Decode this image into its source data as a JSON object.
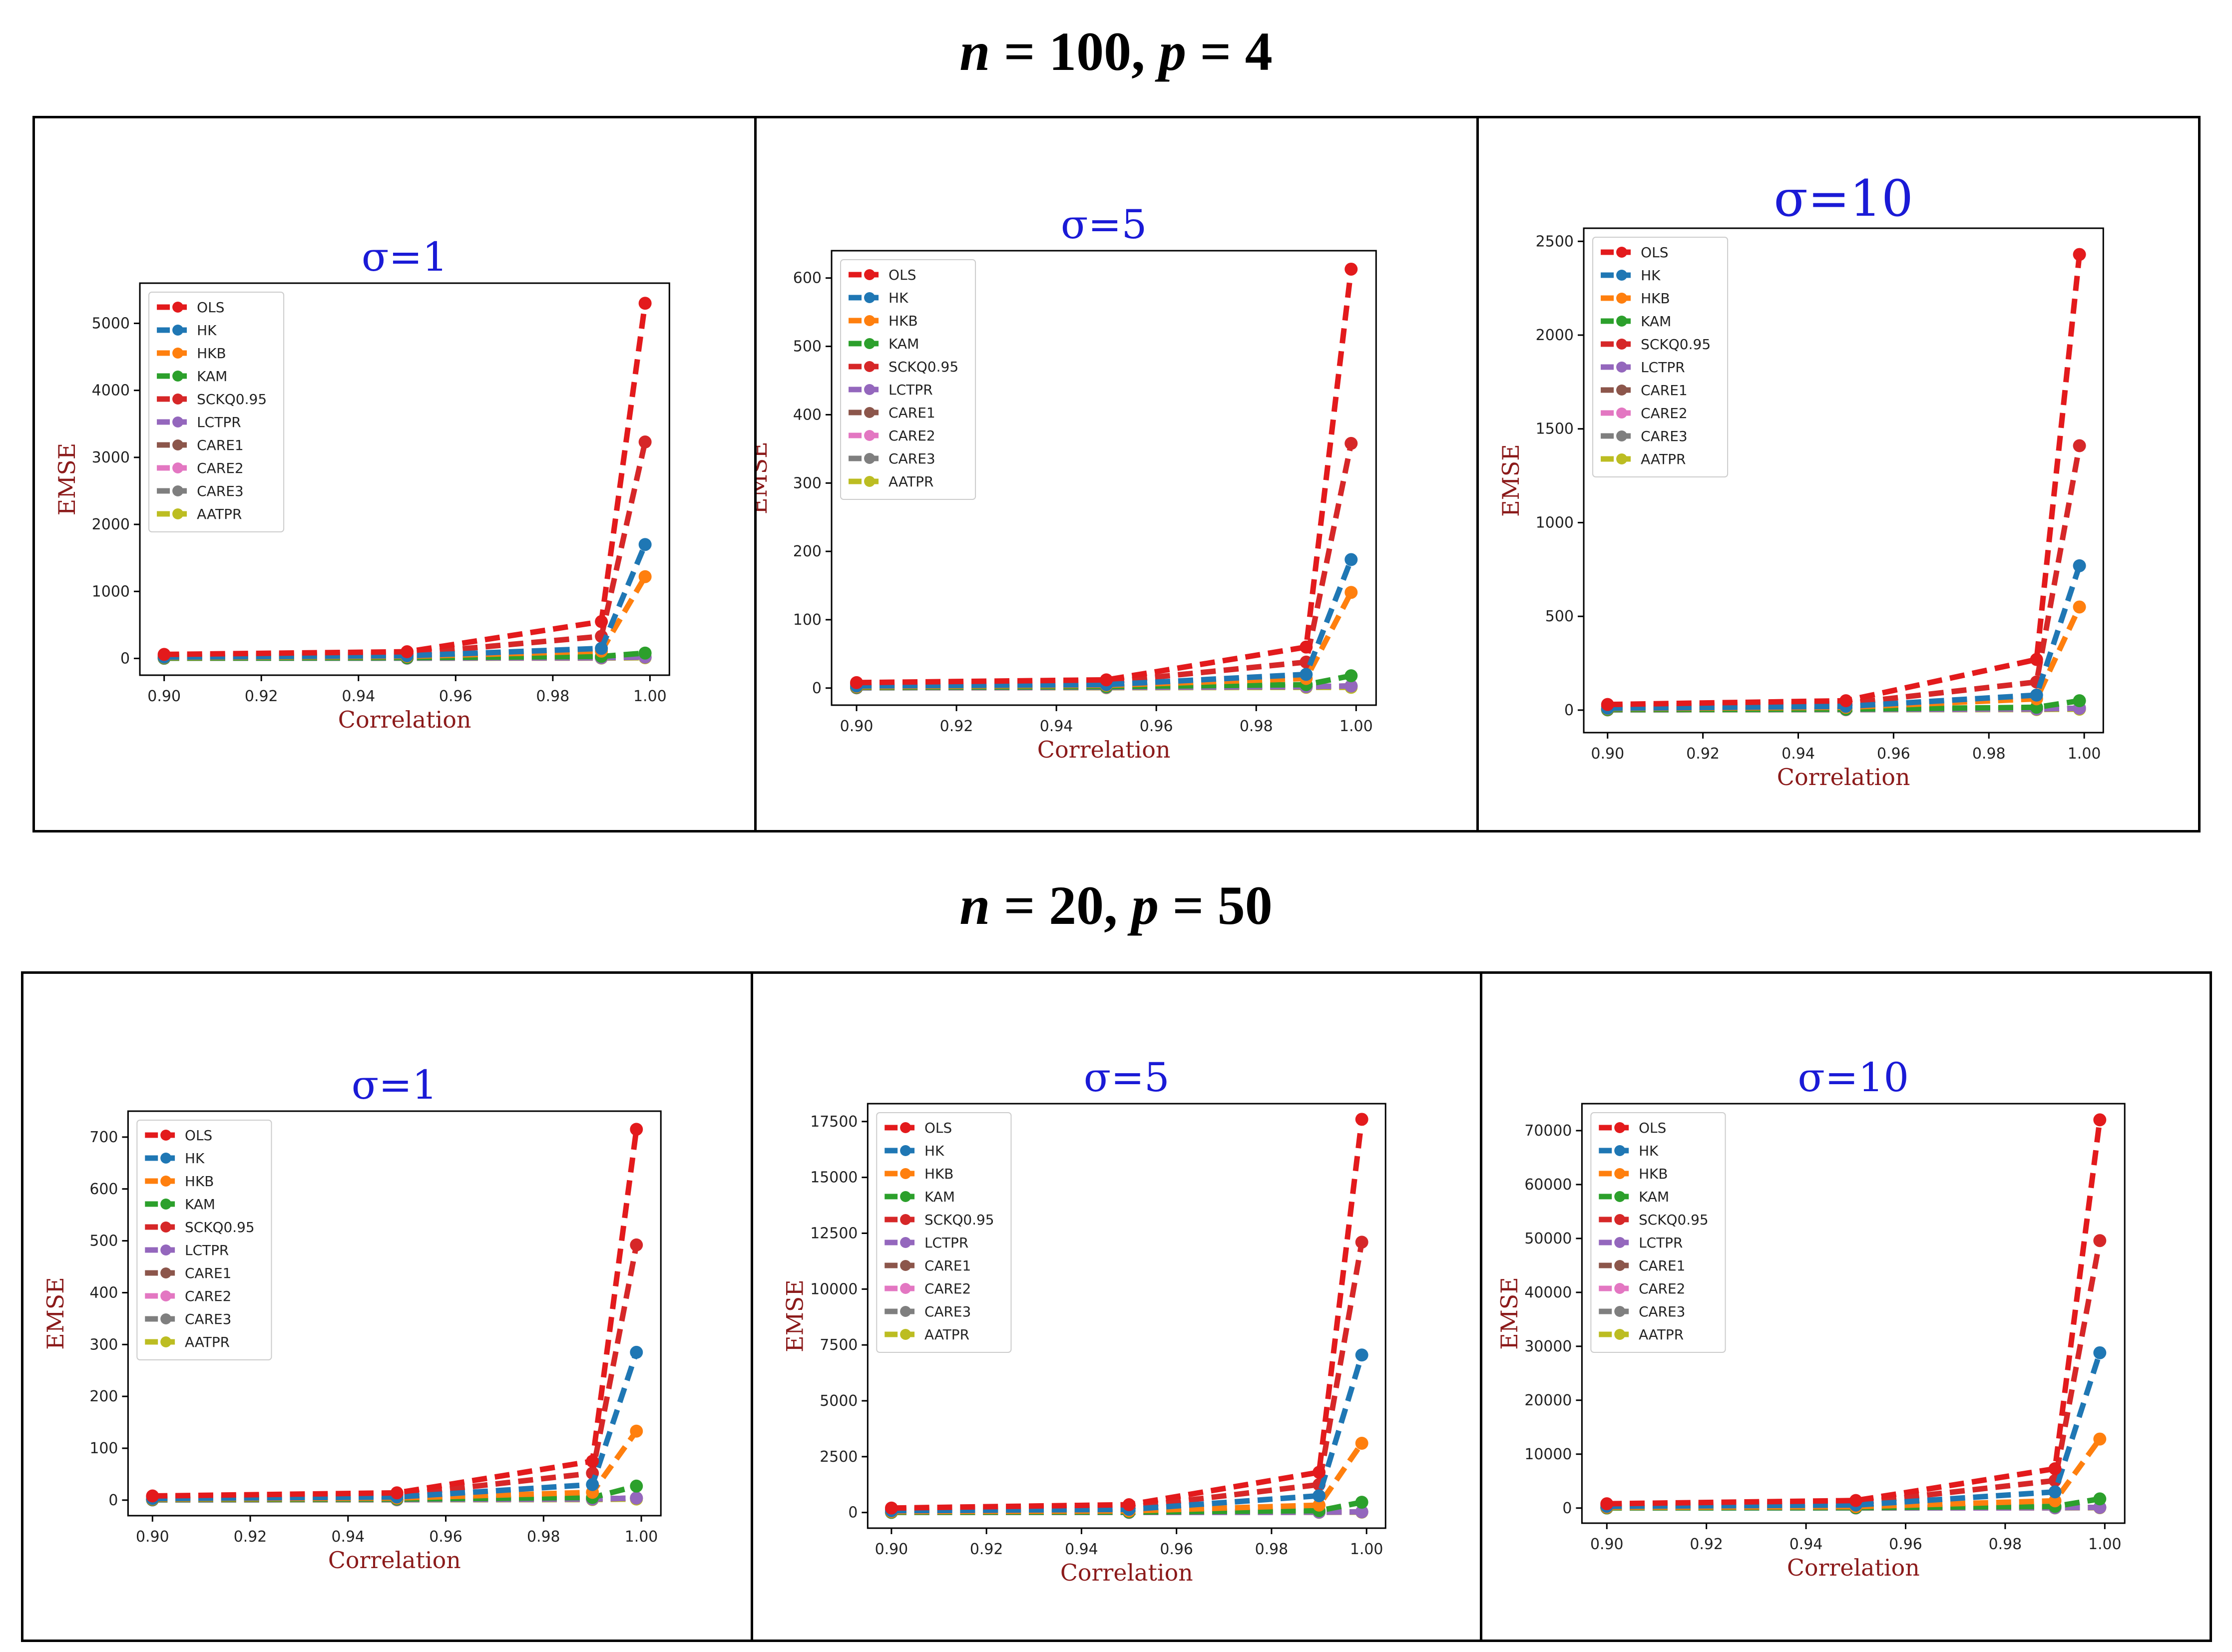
{
  "colors": {
    "OLS": "#e31a1c",
    "HK": "#1f77b4",
    "HKB": "#ff7f0e",
    "KAM": "#2ca02c",
    "SCKQ0.95": "#d62728",
    "LCTPR": "#9467bd",
    "CARE1": "#8c564b",
    "CARE2": "#e377c2",
    "CARE3": "#7f7f7f",
    "AATPR": "#bcbd22",
    "sigma_title": "#1a1ad6",
    "axis_label": "#8b1a1a"
  },
  "groups": [
    {
      "title_n": "n",
      "title_n_val": " = 100, ",
      "title_p": "p",
      "title_p_val": " = 4"
    },
    {
      "title_n": "n",
      "title_n_val": " = 20, ",
      "title_p": "p",
      "title_p_val": " = 50"
    }
  ],
  "chart_data": [
    {
      "type": "line",
      "group": 0,
      "title": "σ=1",
      "xlabel": "Correlation",
      "ylabel": "EMSE",
      "x": [
        0.9,
        0.95,
        0.99,
        0.999
      ],
      "xlim": [
        0.895,
        1.004
      ],
      "ylim": [
        -250,
        5600
      ],
      "xticks": [
        "0.90",
        "0.92",
        "0.94",
        "0.96",
        "0.98",
        "1.00"
      ],
      "xtick_values": [
        0.9,
        0.92,
        0.94,
        0.96,
        0.98,
        1.0
      ],
      "yticks": [
        "0",
        "1000",
        "2000",
        "3000",
        "4000",
        "5000"
      ],
      "ytick_values": [
        0,
        1000,
        2000,
        3000,
        4000,
        5000
      ],
      "legend": [
        "OLS",
        "HK",
        "HKB",
        "KAM",
        "SCKQ0.95",
        "LCTPR",
        "CARE1",
        "CARE2",
        "CARE3",
        "AATPR"
      ],
      "series": [
        {
          "name": "OLS",
          "values": [
            60,
            100,
            550,
            5300
          ]
        },
        {
          "name": "HK",
          "values": [
            20,
            40,
            150,
            1700
          ]
        },
        {
          "name": "HKB",
          "values": [
            15,
            30,
            110,
            1220
          ]
        },
        {
          "name": "KAM",
          "values": [
            5,
            10,
            30,
            80
          ]
        },
        {
          "name": "SCKQ0.95",
          "values": [
            40,
            70,
            330,
            3230
          ]
        },
        {
          "name": "LCTPR",
          "values": [
            3,
            5,
            10,
            20
          ]
        },
        {
          "name": "CARE1",
          "values": [
            3,
            5,
            10,
            20
          ]
        },
        {
          "name": "CARE2",
          "values": [
            3,
            5,
            10,
            20
          ]
        },
        {
          "name": "CARE3",
          "values": [
            3,
            5,
            10,
            20
          ]
        },
        {
          "name": "AATPR",
          "values": [
            2,
            3,
            5,
            10
          ]
        }
      ]
    },
    {
      "type": "line",
      "group": 0,
      "title": "σ=5",
      "xlabel": "Correlation",
      "ylabel": "EMSE",
      "x": [
        0.9,
        0.95,
        0.99,
        0.999
      ],
      "xlim": [
        0.895,
        1.004
      ],
      "ylim": [
        -25,
        640
      ],
      "xticks": [
        "0.90",
        "0.92",
        "0.94",
        "0.96",
        "0.98",
        "1.00"
      ],
      "xtick_values": [
        0.9,
        0.92,
        0.94,
        0.96,
        0.98,
        1.0
      ],
      "yticks": [
        "0",
        "100",
        "200",
        "300",
        "400",
        "500",
        "600"
      ],
      "ytick_values": [
        0,
        100,
        200,
        300,
        400,
        500,
        600
      ],
      "legend": [
        "OLS",
        "HK",
        "HKB",
        "KAM",
        "SCKQ0.95",
        "LCTPR",
        "CARE1",
        "CARE2",
        "CARE3",
        "AATPR"
      ],
      "series": [
        {
          "name": "OLS",
          "values": [
            8,
            12,
            60,
            613
          ]
        },
        {
          "name": "HK",
          "values": [
            3,
            5,
            20,
            188
          ]
        },
        {
          "name": "HKB",
          "values": [
            2,
            4,
            14,
            140
          ]
        },
        {
          "name": "KAM",
          "values": [
            1,
            2,
            5,
            18
          ]
        },
        {
          "name": "SCKQ0.95",
          "values": [
            6,
            9,
            38,
            358
          ]
        },
        {
          "name": "LCTPR",
          "values": [
            0.5,
            1,
            2,
            3
          ]
        },
        {
          "name": "CARE1",
          "values": [
            0.5,
            1,
            2,
            3
          ]
        },
        {
          "name": "CARE2",
          "values": [
            0.5,
            1,
            2,
            3
          ]
        },
        {
          "name": "CARE3",
          "values": [
            0.5,
            1,
            2,
            3
          ]
        },
        {
          "name": "AATPR",
          "values": [
            0.3,
            0.5,
            1,
            1
          ]
        }
      ]
    },
    {
      "type": "line",
      "group": 0,
      "title": "σ=10",
      "xlabel": "Correlation",
      "ylabel": "EMSE",
      "x": [
        0.9,
        0.95,
        0.99,
        0.999
      ],
      "xlim": [
        0.895,
        1.004
      ],
      "ylim": [
        -120,
        2570
      ],
      "xticks": [
        "0.90",
        "0.92",
        "0.94",
        "0.96",
        "0.98",
        "1.00"
      ],
      "xtick_values": [
        0.9,
        0.92,
        0.94,
        0.96,
        0.98,
        1.0
      ],
      "yticks": [
        "0",
        "500",
        "1000",
        "1500",
        "2000",
        "2500"
      ],
      "ytick_values": [
        0,
        500,
        1000,
        1500,
        2000,
        2500
      ],
      "legend": [
        "OLS",
        "HK",
        "HKB",
        "KAM",
        "SCKQ0.95",
        "LCTPR",
        "CARE1",
        "CARE2",
        "CARE3",
        "AATPR"
      ],
      "series": [
        {
          "name": "OLS",
          "values": [
            30,
            50,
            270,
            2430
          ]
        },
        {
          "name": "HK",
          "values": [
            10,
            20,
            80,
            770
          ]
        },
        {
          "name": "HKB",
          "values": [
            8,
            15,
            60,
            550
          ]
        },
        {
          "name": "KAM",
          "values": [
            3,
            5,
            15,
            50
          ]
        },
        {
          "name": "SCKQ0.95",
          "values": [
            20,
            35,
            150,
            1410
          ]
        },
        {
          "name": "LCTPR",
          "values": [
            2,
            3,
            6,
            10
          ]
        },
        {
          "name": "CARE1",
          "values": [
            2,
            3,
            6,
            10
          ]
        },
        {
          "name": "CARE2",
          "values": [
            2,
            3,
            6,
            10
          ]
        },
        {
          "name": "CARE3",
          "values": [
            2,
            3,
            6,
            10
          ]
        },
        {
          "name": "AATPR",
          "values": [
            1,
            2,
            3,
            5
          ]
        }
      ]
    },
    {
      "type": "line",
      "group": 1,
      "title": "σ=1",
      "xlabel": "Correlation",
      "ylabel": "EMSE",
      "x": [
        0.9,
        0.95,
        0.99,
        0.999
      ],
      "xlim": [
        0.895,
        1.004
      ],
      "ylim": [
        -30,
        750
      ],
      "xticks": [
        "0.90",
        "0.92",
        "0.94",
        "0.96",
        "0.98",
        "1.00"
      ],
      "xtick_values": [
        0.9,
        0.92,
        0.94,
        0.96,
        0.98,
        1.0
      ],
      "yticks": [
        "0",
        "100",
        "200",
        "300",
        "400",
        "500",
        "600",
        "700"
      ],
      "ytick_values": [
        0,
        100,
        200,
        300,
        400,
        500,
        600,
        700
      ],
      "legend": [
        "OLS",
        "HK",
        "HKB",
        "KAM",
        "SCKQ0.95",
        "LCTPR",
        "CARE1",
        "CARE2",
        "CARE3",
        "AATPR"
      ],
      "series": [
        {
          "name": "OLS",
          "values": [
            8,
            14,
            75,
            715
          ]
        },
        {
          "name": "HK",
          "values": [
            3,
            6,
            30,
            285
          ]
        },
        {
          "name": "HKB",
          "values": [
            2,
            4,
            15,
            133
          ]
        },
        {
          "name": "KAM",
          "values": [
            1,
            2,
            5,
            27
          ]
        },
        {
          "name": "SCKQ0.95",
          "values": [
            6,
            10,
            52,
            492
          ]
        },
        {
          "name": "LCTPR",
          "values": [
            0.5,
            1,
            2,
            4
          ]
        },
        {
          "name": "CARE1",
          "values": [
            0.5,
            1,
            2,
            4
          ]
        },
        {
          "name": "CARE2",
          "values": [
            0.5,
            1,
            2,
            4
          ]
        },
        {
          "name": "CARE3",
          "values": [
            0.5,
            1,
            2,
            4
          ]
        },
        {
          "name": "AATPR",
          "values": [
            0.3,
            0.5,
            1,
            2
          ]
        }
      ]
    },
    {
      "type": "line",
      "group": 1,
      "title": "σ=5",
      "xlabel": "Correlation",
      "ylabel": "EMSE",
      "x": [
        0.9,
        0.95,
        0.99,
        0.999
      ],
      "xlim": [
        0.895,
        1.004
      ],
      "ylim": [
        -700,
        18300
      ],
      "xticks": [
        "0.90",
        "0.92",
        "0.94",
        "0.96",
        "0.98",
        "1.00"
      ],
      "xtick_values": [
        0.9,
        0.92,
        0.94,
        0.96,
        0.98,
        1.0
      ],
      "yticks": [
        "0",
        "2500",
        "5000",
        "7500",
        "10000",
        "12500",
        "15000",
        "17500"
      ],
      "ytick_values": [
        0,
        2500,
        5000,
        7500,
        10000,
        12500,
        15000,
        17500
      ],
      "legend": [
        "OLS",
        "HK",
        "HKB",
        "KAM",
        "SCKQ0.95",
        "LCTPR",
        "CARE1",
        "CARE2",
        "CARE3",
        "AATPR"
      ],
      "series": [
        {
          "name": "OLS",
          "values": [
            200,
            350,
            1800,
            17600
          ]
        },
        {
          "name": "HK",
          "values": [
            80,
            140,
            750,
            7050
          ]
        },
        {
          "name": "HKB",
          "values": [
            40,
            70,
            330,
            3100
          ]
        },
        {
          "name": "KAM",
          "values": [
            10,
            20,
            80,
            460
          ]
        },
        {
          "name": "SCKQ0.95",
          "values": [
            140,
            240,
            1250,
            12100
          ]
        },
        {
          "name": "LCTPR",
          "values": [
            5,
            8,
            15,
            30
          ]
        },
        {
          "name": "CARE1",
          "values": [
            5,
            8,
            15,
            30
          ]
        },
        {
          "name": "CARE2",
          "values": [
            5,
            8,
            15,
            30
          ]
        },
        {
          "name": "CARE3",
          "values": [
            5,
            8,
            15,
            30
          ]
        },
        {
          "name": "AATPR",
          "values": [
            3,
            5,
            8,
            15
          ]
        }
      ]
    },
    {
      "type": "line",
      "group": 1,
      "title": "σ=10",
      "xlabel": "Correlation",
      "ylabel": "EMSE",
      "x": [
        0.9,
        0.95,
        0.99,
        0.999
      ],
      "xlim": [
        0.895,
        1.004
      ],
      "ylim": [
        -2800,
        75000
      ],
      "xticks": [
        "0.90",
        "0.92",
        "0.94",
        "0.96",
        "0.98",
        "1.00"
      ],
      "xtick_values": [
        0.9,
        0.92,
        0.94,
        0.96,
        0.98,
        1.0
      ],
      "yticks": [
        "0",
        "10000",
        "20000",
        "30000",
        "40000",
        "50000",
        "60000",
        "70000"
      ],
      "ytick_values": [
        0,
        10000,
        20000,
        30000,
        40000,
        50000,
        60000,
        70000
      ],
      "legend": [
        "OLS",
        "HK",
        "HKB",
        "KAM",
        "SCKQ0.95",
        "LCTPR",
        "CARE1",
        "CARE2",
        "CARE3",
        "AATPR"
      ],
      "series": [
        {
          "name": "OLS",
          "values": [
            800,
            1400,
            7300,
            72000
          ]
        },
        {
          "name": "HK",
          "values": [
            320,
            560,
            3000,
            28800
          ]
        },
        {
          "name": "HKB",
          "values": [
            150,
            260,
            1350,
            12800
          ]
        },
        {
          "name": "KAM",
          "values": [
            40,
            70,
            300,
            1700
          ]
        },
        {
          "name": "SCKQ0.95",
          "values": [
            550,
            950,
            5100,
            49600
          ]
        },
        {
          "name": "LCTPR",
          "values": [
            20,
            30,
            60,
            120
          ]
        },
        {
          "name": "CARE1",
          "values": [
            20,
            30,
            60,
            120
          ]
        },
        {
          "name": "CARE2",
          "values": [
            20,
            30,
            60,
            120
          ]
        },
        {
          "name": "CARE3",
          "values": [
            20,
            30,
            60,
            120
          ]
        },
        {
          "name": "AATPR",
          "values": [
            10,
            15,
            30,
            60
          ]
        }
      ]
    }
  ]
}
